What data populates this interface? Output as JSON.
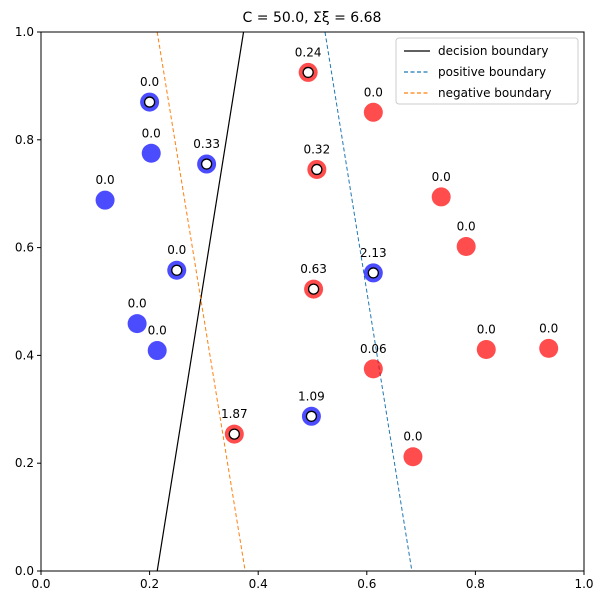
{
  "chart_data": {
    "type": "scatter",
    "title": "C = 50.0,  Σξ = 6.68",
    "xlim": [
      0.0,
      1.0
    ],
    "ylim": [
      0.0,
      1.0
    ],
    "xticks": [
      "0.0",
      "0.2",
      "0.4",
      "0.6",
      "0.8",
      "1.0"
    ],
    "yticks": [
      "0.0",
      "0.2",
      "0.4",
      "0.6",
      "0.8",
      "1.0"
    ],
    "legend_position": "top-right",
    "lines": [
      {
        "name": "decision boundary",
        "style": "solid",
        "color": "#000000",
        "points": [
          [
            0.373,
            1.0
          ],
          [
            0.214,
            0.0
          ]
        ],
        "points_fixed": [
          [
            0.373,
            1.0
          ],
          [
            0.214,
            0.0
          ]
        ]
      },
      {
        "name": "positive boundary",
        "style": "dashed",
        "color": "#1f77b4",
        "points": [
          [
            0.523,
            1.0
          ],
          [
            0.683,
            0.0
          ]
        ]
      },
      {
        "name": "negative boundary",
        "style": "dashed",
        "color": "#ff7f0e",
        "points": [
          [
            0.214,
            1.0
          ],
          [
            0.376,
            0.0
          ]
        ]
      }
    ],
    "points": [
      {
        "x": 0.2,
        "y": 0.87,
        "cls": "blue",
        "sv": true,
        "label": "0.0"
      },
      {
        "x": 0.203,
        "y": 0.775,
        "cls": "blue",
        "sv": false,
        "label": "0.0"
      },
      {
        "x": 0.305,
        "y": 0.755,
        "cls": "blue",
        "sv": true,
        "label": "0.33"
      },
      {
        "x": 0.118,
        "y": 0.688,
        "cls": "blue",
        "sv": false,
        "label": "0.0"
      },
      {
        "x": 0.25,
        "y": 0.558,
        "cls": "blue",
        "sv": true,
        "label": "0.0"
      },
      {
        "x": 0.177,
        "y": 0.459,
        "cls": "blue",
        "sv": false,
        "label": "0.0"
      },
      {
        "x": 0.214,
        "y": 0.409,
        "cls": "blue",
        "sv": false,
        "label": "0.0"
      },
      {
        "x": 0.612,
        "y": 0.553,
        "cls": "blue",
        "sv": true,
        "label": "2.13"
      },
      {
        "x": 0.498,
        "y": 0.287,
        "cls": "blue",
        "sv": true,
        "label": "1.09"
      },
      {
        "x": 0.492,
        "y": 0.925,
        "cls": "red",
        "sv": true,
        "label": "0.24"
      },
      {
        "x": 0.612,
        "y": 0.851,
        "cls": "red",
        "sv": false,
        "label": "0.0"
      },
      {
        "x": 0.508,
        "y": 0.745,
        "cls": "red",
        "sv": true,
        "label": "0.32"
      },
      {
        "x": 0.737,
        "y": 0.694,
        "cls": "red",
        "sv": false,
        "label": "0.0"
      },
      {
        "x": 0.783,
        "y": 0.602,
        "cls": "red",
        "sv": false,
        "label": "0.0"
      },
      {
        "x": 0.502,
        "y": 0.523,
        "cls": "red",
        "sv": true,
        "label": "0.63"
      },
      {
        "x": 0.82,
        "y": 0.411,
        "cls": "red",
        "sv": false,
        "label": "0.0"
      },
      {
        "x": 0.935,
        "y": 0.413,
        "cls": "red",
        "sv": false,
        "label": "0.0"
      },
      {
        "x": 0.612,
        "y": 0.375,
        "cls": "red",
        "sv": false,
        "label": "0.06"
      },
      {
        "x": 0.356,
        "y": 0.254,
        "cls": "red",
        "sv": true,
        "label": "1.87"
      },
      {
        "x": 0.685,
        "y": 0.212,
        "cls": "red",
        "sv": false,
        "label": "0.0"
      }
    ]
  },
  "colors": {
    "blue": "#0000ff",
    "red": "#ff0000",
    "axis": "#000000"
  }
}
